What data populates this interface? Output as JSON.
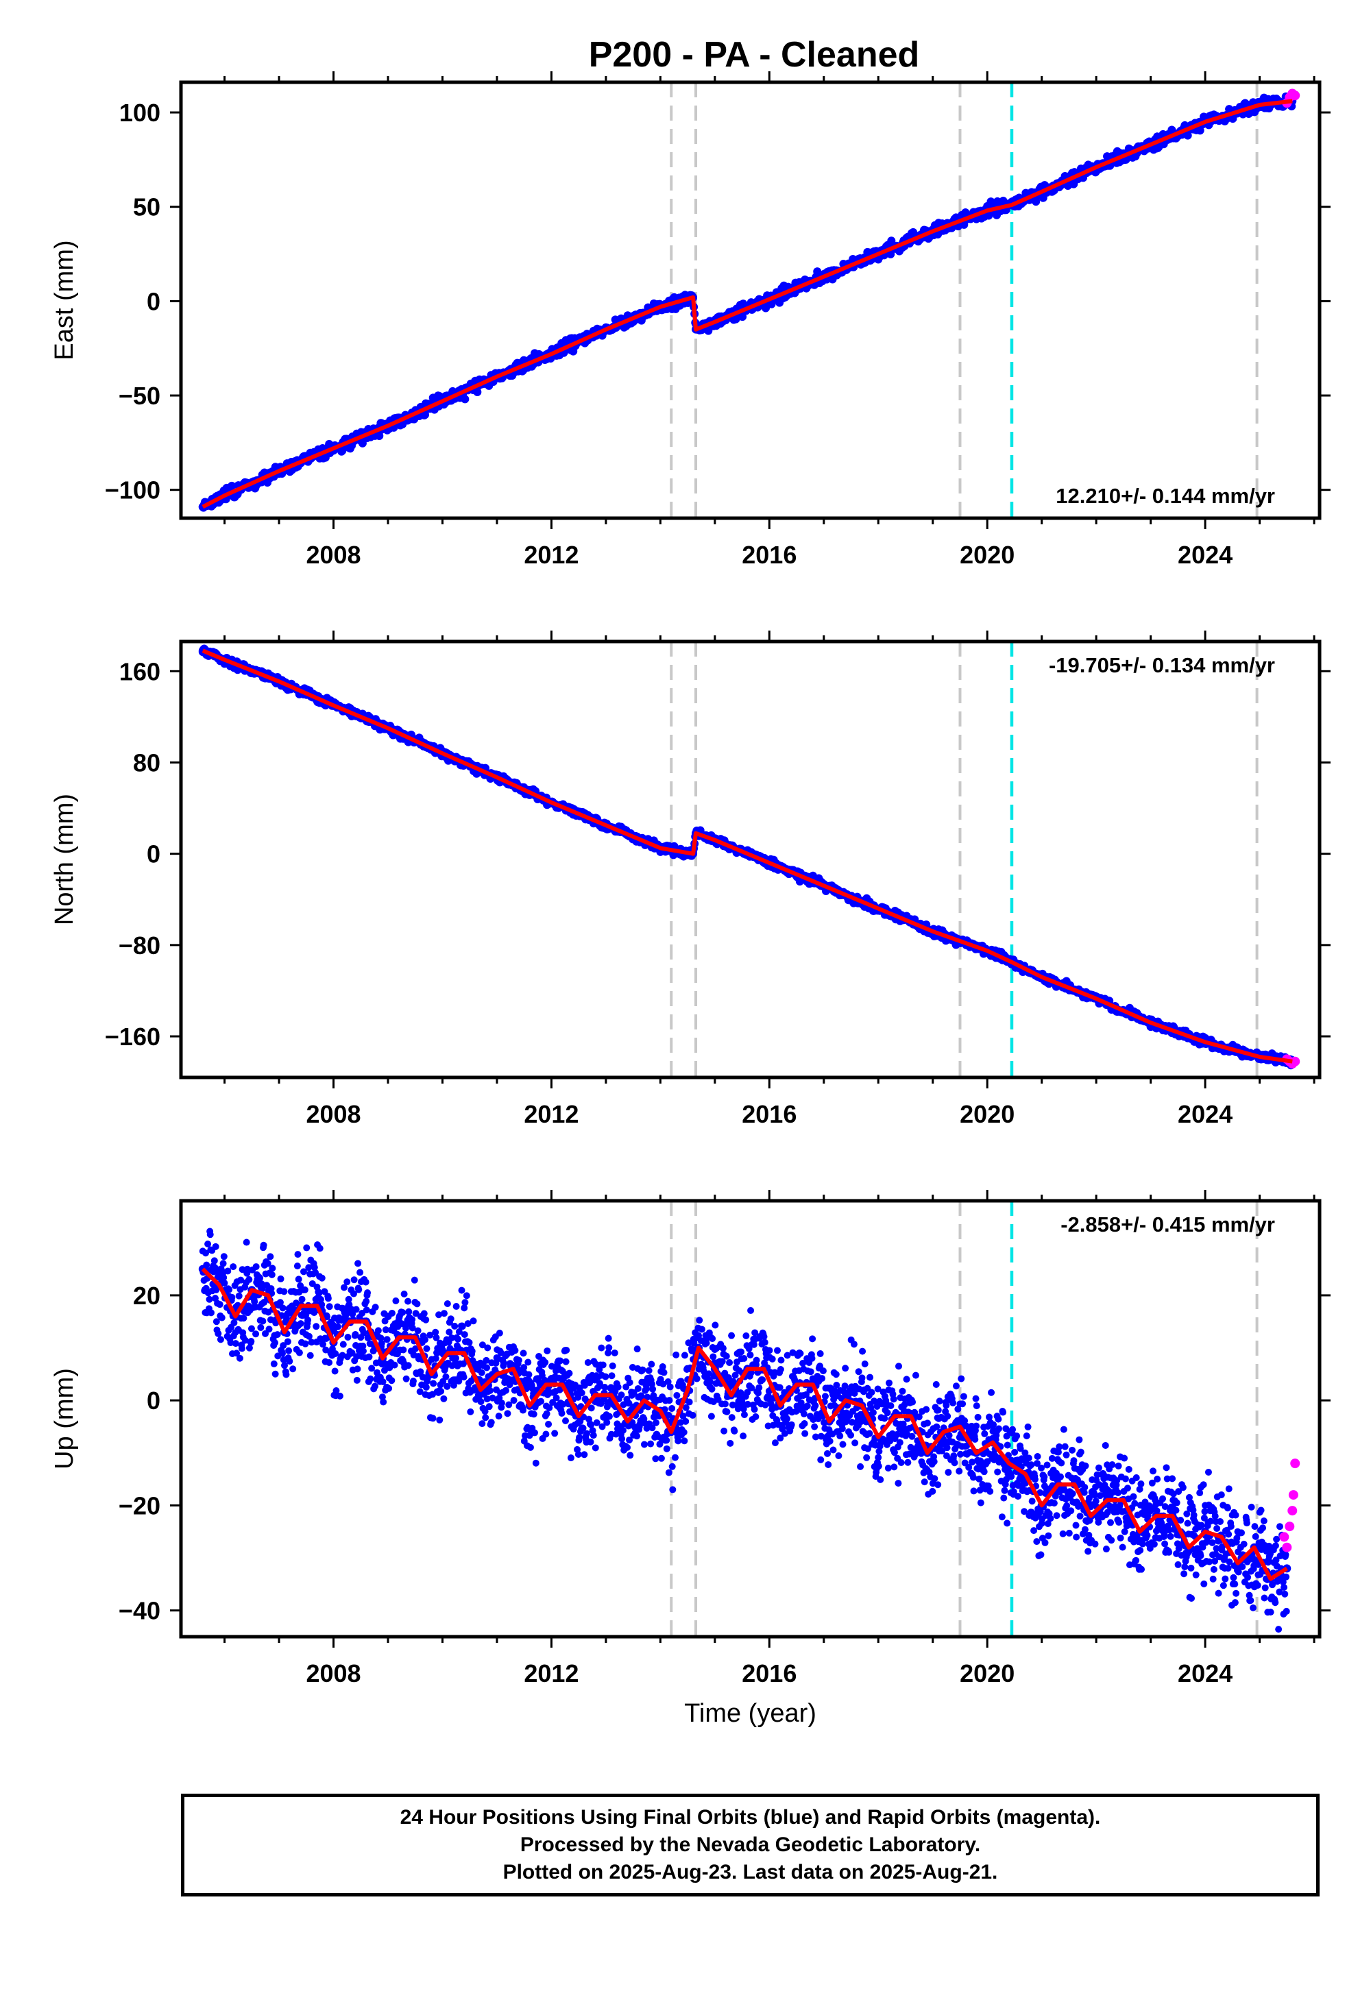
{
  "title": "P200  - PA - Cleaned",
  "footer": {
    "line1": "24 Hour Positions Using Final Orbits (blue) and Rapid Orbits (magenta).",
    "line2": "Processed by the Nevada Geodetic Laboratory.",
    "line3": "Plotted on 2025-Aug-23. Last data on 2025-Aug-21."
  },
  "colors": {
    "final_orbits": "#0000ff",
    "rapid_orbits": "#ff00ff",
    "model": "#ff0000",
    "gray_lines": "#c8c8c8",
    "cyan_line": "#00e5e5"
  },
  "chart_data": [
    {
      "type": "scatter",
      "panel": "east",
      "ylabel": "East (mm)",
      "xlabel": "",
      "xlim": [
        2005.2,
        2026.1
      ],
      "ylim": [
        -115,
        116
      ],
      "yticks": [
        -100,
        -50,
        0,
        50,
        100
      ],
      "xticks": [
        2008,
        2012,
        2016,
        2020,
        2024
      ],
      "rate_label": "12.210+/- 0.144 mm/yr",
      "rate_position": "bottom-right",
      "gray_vlines": [
        2014.2,
        2014.65,
        2019.5,
        2024.95
      ],
      "cyan_vlines": [
        2020.45
      ],
      "series": [
        {
          "name": "final orbits (blue)",
          "x": [
            2005.6,
            2006.0,
            2007.0,
            2008.0,
            2009.0,
            2010.0,
            2011.0,
            2012.0,
            2013.0,
            2014.0,
            2014.6,
            2014.65,
            2015.0,
            2016.0,
            2017.0,
            2018.0,
            2019.0,
            2020.0,
            2020.45,
            2021.0,
            2022.0,
            2023.0,
            2024.0,
            2025.0,
            2025.6
          ],
          "y": [
            -109,
            -103,
            -90,
            -78,
            -66,
            -53,
            -40,
            -28,
            -15,
            -3,
            2,
            -15,
            -11,
            1,
            13,
            25,
            37,
            48,
            51,
            58,
            71,
            83,
            95,
            104,
            106
          ]
        },
        {
          "name": "rapid orbits (magenta)",
          "x": [
            2025.5,
            2025.55,
            2025.6,
            2025.65
          ],
          "y": [
            105,
            108,
            110,
            109
          ]
        },
        {
          "name": "model (red)",
          "x": [
            2005.6,
            2006.0,
            2007.0,
            2008.0,
            2009.0,
            2010.0,
            2011.0,
            2012.0,
            2013.0,
            2014.0,
            2014.6,
            2014.65,
            2015.0,
            2016.0,
            2017.0,
            2018.0,
            2019.0,
            2020.0,
            2020.45,
            2021.0,
            2022.0,
            2023.0,
            2024.0,
            2025.0,
            2025.6
          ],
          "y": [
            -109,
            -103,
            -90,
            -78,
            -66,
            -53,
            -40,
            -28,
            -15,
            -3,
            2,
            -15,
            -11,
            1,
            13,
            25,
            37,
            48,
            51,
            58,
            71,
            83,
            95,
            104,
            106
          ]
        }
      ]
    },
    {
      "type": "scatter",
      "panel": "north",
      "ylabel": "North (mm)",
      "xlabel": "",
      "xlim": [
        2005.2,
        2026.1
      ],
      "ylim": [
        -196,
        186
      ],
      "yticks": [
        -160,
        -80,
        0,
        80,
        160
      ],
      "xticks": [
        2008,
        2012,
        2016,
        2020,
        2024
      ],
      "rate_label": "-19.705+/- 0.134 mm/yr",
      "rate_position": "top-right",
      "gray_vlines": [
        2014.2,
        2014.65,
        2019.5,
        2024.95
      ],
      "cyan_vlines": [
        2020.45
      ],
      "series": [
        {
          "name": "final orbits (blue)",
          "x": [
            2005.6,
            2006.0,
            2007.0,
            2008.0,
            2009.0,
            2010.0,
            2011.0,
            2012.0,
            2013.0,
            2014.0,
            2014.6,
            2014.65,
            2015.0,
            2016.0,
            2017.0,
            2018.0,
            2019.0,
            2020.0,
            2020.45,
            2021.0,
            2022.0,
            2023.0,
            2024.0,
            2025.0,
            2025.6
          ],
          "y": [
            178,
            170,
            151,
            130,
            110,
            88,
            67,
            45,
            25,
            5,
            0,
            18,
            12,
            -8,
            -28,
            -48,
            -68,
            -85,
            -95,
            -108,
            -127,
            -148,
            -165,
            -178,
            -182
          ]
        },
        {
          "name": "rapid orbits (magenta)",
          "x": [
            2025.5,
            2025.55,
            2025.6,
            2025.65
          ],
          "y": [
            -180,
            -182,
            -184,
            -182
          ]
        },
        {
          "name": "model (red)",
          "x": [
            2005.6,
            2006.0,
            2007.0,
            2008.0,
            2009.0,
            2010.0,
            2011.0,
            2012.0,
            2013.0,
            2014.0,
            2014.6,
            2014.65,
            2015.0,
            2016.0,
            2017.0,
            2018.0,
            2019.0,
            2020.0,
            2020.45,
            2021.0,
            2022.0,
            2023.0,
            2024.0,
            2025.0,
            2025.6
          ],
          "y": [
            178,
            170,
            151,
            130,
            110,
            88,
            67,
            45,
            25,
            5,
            0,
            18,
            12,
            -8,
            -28,
            -48,
            -68,
            -85,
            -95,
            -108,
            -127,
            -148,
            -165,
            -178,
            -182
          ]
        }
      ]
    },
    {
      "type": "scatter",
      "panel": "up",
      "ylabel": "Up (mm)",
      "xlabel": "Time (year)",
      "xlim": [
        2005.2,
        2026.1
      ],
      "ylim": [
        -45,
        38
      ],
      "yticks": [
        -40,
        -20,
        0,
        20
      ],
      "xticks": [
        2008,
        2012,
        2016,
        2020,
        2024
      ],
      "rate_label": "-2.858+/- 0.415 mm/yr",
      "rate_position": "top-right",
      "gray_vlines": [
        2014.2,
        2014.65,
        2019.5,
        2024.95
      ],
      "cyan_vlines": [
        2020.45
      ],
      "series": [
        {
          "name": "final orbits (blue)",
          "x": [
            2005.6,
            2005.9,
            2006.2,
            2006.5,
            2006.8,
            2007.1,
            2007.4,
            2007.7,
            2008.0,
            2008.3,
            2008.6,
            2008.9,
            2009.2,
            2009.5,
            2009.8,
            2010.1,
            2010.4,
            2010.7,
            2011.0,
            2011.3,
            2011.6,
            2011.9,
            2012.2,
            2012.5,
            2012.8,
            2013.1,
            2013.4,
            2013.7,
            2014.0,
            2014.2,
            2014.5,
            2014.7,
            2015.0,
            2015.3,
            2015.6,
            2015.9,
            2016.2,
            2016.5,
            2016.8,
            2017.1,
            2017.4,
            2017.7,
            2018.0,
            2018.3,
            2018.6,
            2018.9,
            2019.2,
            2019.5,
            2019.8,
            2020.1,
            2020.4,
            2020.7,
            2021.0,
            2021.3,
            2021.6,
            2021.9,
            2022.2,
            2022.5,
            2022.8,
            2023.1,
            2023.4,
            2023.7,
            2024.0,
            2024.3,
            2024.6,
            2024.9,
            2025.2,
            2025.5
          ],
          "y": [
            25,
            22,
            16,
            21,
            20,
            13,
            18,
            18,
            11,
            15,
            15,
            8,
            12,
            12,
            5,
            9,
            9,
            2,
            5,
            6,
            -1,
            3,
            3,
            -3,
            1,
            1,
            -4,
            0,
            -2,
            -6,
            2,
            10,
            6,
            1,
            6,
            6,
            -1,
            3,
            3,
            -4,
            0,
            -1,
            -7,
            -3,
            -3,
            -10,
            -6,
            -5,
            -10,
            -8,
            -12,
            -14,
            -20,
            -16,
            -16,
            -22,
            -19,
            -19,
            -25,
            -22,
            -22,
            -28,
            -25,
            -26,
            -31,
            -28,
            -34,
            -32
          ]
        },
        {
          "name": "rapid orbits (magenta)",
          "x": [
            2025.45,
            2025.5,
            2025.55,
            2025.6,
            2025.62,
            2025.65
          ],
          "y": [
            -26,
            -28,
            -24,
            -21,
            -18,
            -12
          ]
        },
        {
          "name": "model (red)",
          "x": [
            2005.6,
            2005.9,
            2006.2,
            2006.5,
            2006.8,
            2007.1,
            2007.4,
            2007.7,
            2008.0,
            2008.3,
            2008.6,
            2008.9,
            2009.2,
            2009.5,
            2009.8,
            2010.1,
            2010.4,
            2010.7,
            2011.0,
            2011.3,
            2011.6,
            2011.9,
            2012.2,
            2012.5,
            2012.8,
            2013.1,
            2013.4,
            2013.7,
            2014.0,
            2014.2,
            2014.5,
            2014.7,
            2015.0,
            2015.3,
            2015.6,
            2015.9,
            2016.2,
            2016.5,
            2016.8,
            2017.1,
            2017.4,
            2017.7,
            2018.0,
            2018.3,
            2018.6,
            2018.9,
            2019.2,
            2019.5,
            2019.8,
            2020.1,
            2020.4,
            2020.7,
            2021.0,
            2021.3,
            2021.6,
            2021.9,
            2022.2,
            2022.5,
            2022.8,
            2023.1,
            2023.4,
            2023.7,
            2024.0,
            2024.3,
            2024.6,
            2024.9,
            2025.2,
            2025.5
          ],
          "y": [
            25,
            22,
            16,
            21,
            20,
            13,
            18,
            18,
            11,
            15,
            15,
            8,
            12,
            12,
            5,
            9,
            9,
            2,
            5,
            6,
            -1,
            3,
            3,
            -3,
            1,
            1,
            -4,
            0,
            -2,
            -6,
            2,
            10,
            6,
            1,
            6,
            6,
            -1,
            3,
            3,
            -4,
            0,
            -1,
            -7,
            -3,
            -3,
            -10,
            -6,
            -5,
            -10,
            -8,
            -12,
            -14,
            -20,
            -16,
            -16,
            -22,
            -19,
            -19,
            -25,
            -22,
            -22,
            -28,
            -25,
            -26,
            -31,
            -28,
            -34,
            -32
          ]
        }
      ]
    }
  ]
}
